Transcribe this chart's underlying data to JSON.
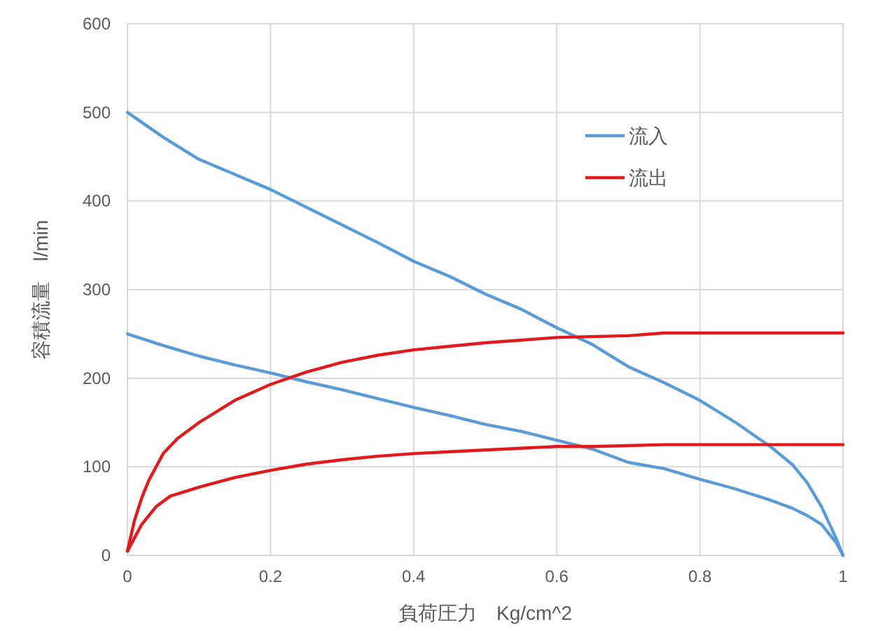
{
  "chart_data": {
    "type": "line",
    "xlabel": "負荷圧力　Kg/cm^2",
    "ylabel": "容積流量　l/min",
    "xlim": [
      0,
      1
    ],
    "xticks": [
      0,
      0.2,
      0.4,
      0.6,
      0.8,
      1
    ],
    "ylim": [
      0,
      600
    ],
    "yticks": [
      0,
      100,
      200,
      300,
      400,
      500,
      600
    ],
    "grid": true,
    "legend": "top right",
    "series": [
      {
        "name": "流入",
        "color": "#5b9bd5",
        "x": [
          0,
          0.05,
          0.1,
          0.15,
          0.2,
          0.25,
          0.3,
          0.35,
          0.4,
          0.45,
          0.5,
          0.55,
          0.6,
          0.65,
          0.7,
          0.75,
          0.8,
          0.85,
          0.9,
          0.93,
          0.95,
          0.97,
          0.99,
          1
        ],
        "values": [
          500,
          472,
          447,
          430,
          413,
          393,
          373,
          353,
          332,
          315,
          295,
          278,
          257,
          238,
          213,
          195,
          175,
          150,
          122,
          102,
          82,
          55,
          20,
          0
        ]
      },
      {
        "color": "#5b9bd5",
        "x": [
          0,
          0.05,
          0.1,
          0.15,
          0.2,
          0.25,
          0.3,
          0.35,
          0.4,
          0.45,
          0.5,
          0.55,
          0.6,
          0.65,
          0.7,
          0.75,
          0.8,
          0.85,
          0.9,
          0.93,
          0.95,
          0.97,
          0.99,
          1
        ],
        "values": [
          250,
          237,
          225,
          215,
          206,
          196,
          187,
          177,
          167,
          158,
          148,
          140,
          130,
          120,
          105,
          98,
          86,
          75,
          62,
          53,
          45,
          35,
          15,
          0
        ]
      },
      {
        "name": "流出",
        "color": "#e31a1c",
        "x": [
          0,
          0.01,
          0.02,
          0.03,
          0.05,
          0.07,
          0.1,
          0.15,
          0.2,
          0.25,
          0.3,
          0.35,
          0.4,
          0.45,
          0.5,
          0.55,
          0.6,
          0.65,
          0.7,
          0.75,
          0.8,
          0.9,
          1
        ],
        "values": [
          5,
          40,
          65,
          85,
          115,
          132,
          150,
          175,
          193,
          207,
          218,
          226,
          232,
          236,
          240,
          243,
          246,
          247,
          248,
          251,
          251,
          251,
          251
        ]
      },
      {
        "color": "#e31a1c",
        "x": [
          0,
          0.02,
          0.04,
          0.06,
          0.1,
          0.15,
          0.2,
          0.25,
          0.3,
          0.35,
          0.4,
          0.45,
          0.5,
          0.55,
          0.6,
          0.65,
          0.7,
          0.75,
          0.8,
          0.9,
          1
        ],
        "values": [
          5,
          35,
          55,
          67,
          77,
          88,
          96,
          103,
          108,
          112,
          115,
          117,
          119,
          121,
          123,
          123,
          124,
          125,
          125,
          125,
          125
        ]
      }
    ]
  }
}
